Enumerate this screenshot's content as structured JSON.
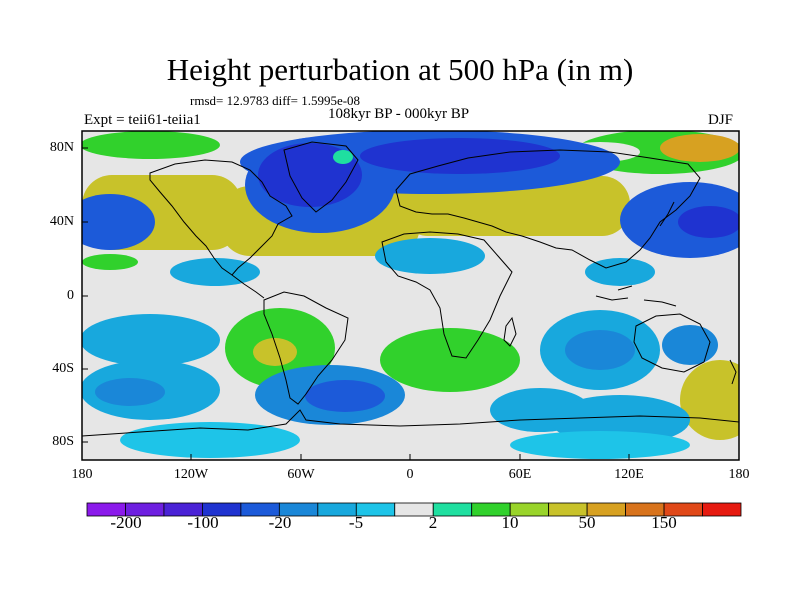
{
  "title": "Height perturbation at 500 hPa (in m)",
  "stats": "rmsd= 12.9783 diff= 1.5995e-08",
  "subtitle": "108kyr BP - 000kyr BP",
  "experiment": "Expt = teii61-teiia1",
  "season": "DJF",
  "lat_labels": [
    "80N",
    "40N",
    "0",
    "40S",
    "80S"
  ],
  "lon_labels": [
    "180",
    "120W",
    "60W",
    "0",
    "60E",
    "120E",
    "180"
  ],
  "colorbar": {
    "colors": [
      "#8b1aeb",
      "#6e1fe0",
      "#4a22d6",
      "#1f33d0",
      "#1c5ad9",
      "#1a87d8",
      "#18a8dd",
      "#1ec4e8",
      "#e6e6e6",
      "#1fdfa0",
      "#31d12c",
      "#99d42a",
      "#c8c22a",
      "#d7a121",
      "#d8731c",
      "#e04818",
      "#e61a10"
    ],
    "labels": [
      "-200",
      "-100",
      "-20",
      "-5",
      "2",
      "10",
      "50",
      "150"
    ]
  },
  "field_colors": {
    "strong_neg": "#1f33d0",
    "neg": "#1c5ad9",
    "mid_neg": "#1a87d8",
    "weak_neg": "#18a8dd",
    "light_neg": "#1ec4e8",
    "neutral": "#e6e6e6",
    "weak_pos": "#1fdfa0",
    "pos": "#31d12c",
    "mid_pos": "#99d42a",
    "strong_pos": "#c8c22a",
    "very_pos": "#d7a121"
  }
}
